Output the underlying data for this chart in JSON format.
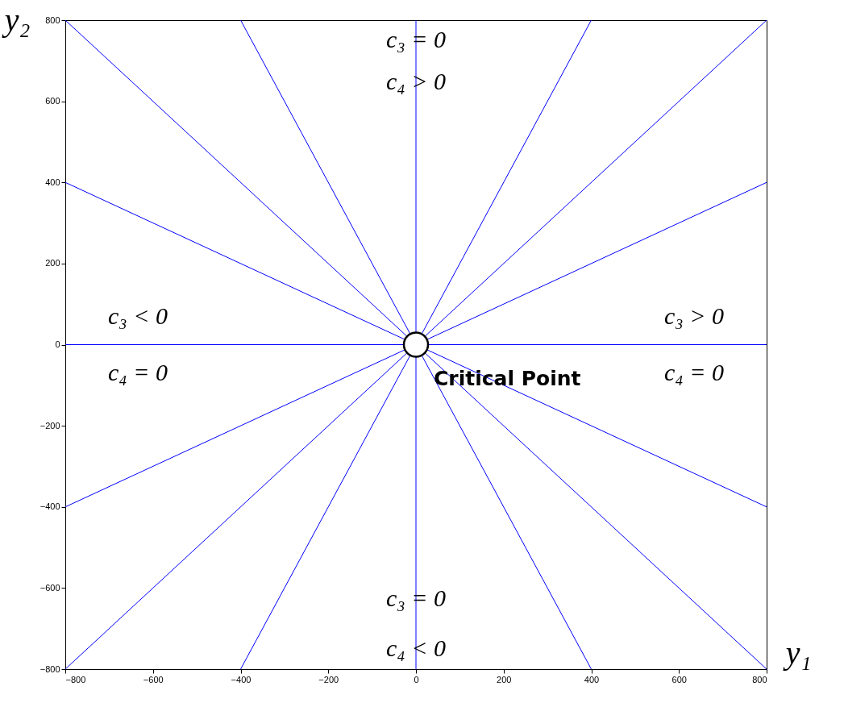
{
  "chart_data": {
    "type": "line",
    "xlabel": "y₁",
    "ylabel": "y₂",
    "xlim": [
      -800,
      800
    ],
    "ylim": [
      -800,
      800
    ],
    "xticks": [
      -800,
      -600,
      -400,
      -200,
      0,
      200,
      400,
      600,
      800
    ],
    "yticks": [
      -800,
      -600,
      -400,
      -200,
      0,
      200,
      400,
      600,
      800
    ],
    "grid": false,
    "marker": "none",
    "line_style": "solid",
    "series": [
      {
        "color": "#0000ff",
        "x": [
          -800,
          800
        ],
        "values": [
          -800,
          800
        ]
      },
      {
        "color": "#0000ff",
        "x": [
          -800,
          800
        ],
        "values": [
          800,
          -800
        ]
      },
      {
        "color": "#0000ff",
        "x": [
          -800,
          800
        ],
        "values": [
          -400,
          400
        ]
      },
      {
        "color": "#0000ff",
        "x": [
          -800,
          800
        ],
        "values": [
          400,
          -400
        ]
      },
      {
        "color": "#0000ff",
        "x": [
          -400,
          400
        ],
        "values": [
          -800,
          800
        ]
      },
      {
        "color": "#0000ff",
        "x": [
          -400,
          400
        ],
        "values": [
          800,
          -800
        ]
      },
      {
        "color": "#0000ff",
        "x": [
          -800,
          800
        ],
        "values": [
          0,
          0
        ]
      },
      {
        "color": "#0000ff",
        "x": [
          0,
          0
        ],
        "values": [
          -800,
          800
        ]
      },
      {
        "type": "scatter",
        "color": "#ffffff",
        "marker": "circle",
        "x": [
          0
        ],
        "values": [
          0
        ]
      }
    ],
    "annotations": [
      "c₃ = 0",
      "c₄ > 0",
      "c₃ < 0",
      "c₄ = 0",
      "c₃ > 0",
      "c₄ = 0",
      "c₃ = 0",
      "c₄ < 0",
      {
        "text": "Critical Point",
        "x": 0,
        "y": 0
      }
    ]
  }
}
